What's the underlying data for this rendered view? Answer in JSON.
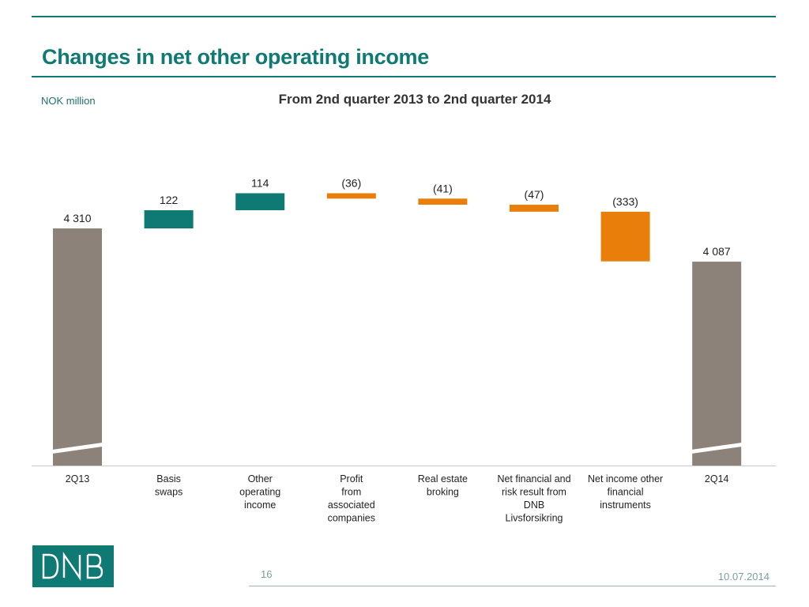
{
  "header": {
    "title": "Changes in net other operating income",
    "unit": "NOK million"
  },
  "chart_data": {
    "type": "bar",
    "subtype": "waterfall",
    "title": "From 2nd quarter 2013 to 2nd quarter 2014",
    "ylabel": "NOK million",
    "axis_break": true,
    "grid": false,
    "legend": "none",
    "categories": [
      [
        "2Q13"
      ],
      [
        "Basis",
        "swaps"
      ],
      [
        "Other",
        "operating",
        "income"
      ],
      [
        "Profit",
        "from",
        "associated",
        "companies"
      ],
      [
        "Real estate",
        "broking"
      ],
      [
        "Net financial and",
        "risk result from",
        "DNB",
        "Livsforsikring"
      ],
      [
        "Net income other",
        "financial",
        "instruments"
      ],
      [
        "2Q14"
      ]
    ],
    "values": [
      4310,
      122,
      114,
      -36,
      -41,
      -47,
      -333,
      4087
    ],
    "kinds": [
      "total",
      "delta",
      "delta",
      "delta",
      "delta",
      "delta",
      "delta",
      "total"
    ],
    "labels": [
      "4 310",
      "122",
      "114",
      "(36)",
      "(41)",
      "(47)",
      "(333)",
      "4 087"
    ],
    "colors": {
      "total": "#8c827a",
      "increase": "#0f7a73",
      "decrease": "#e97e0a"
    }
  },
  "footer": {
    "logo_text": "DNB",
    "page_number": "16",
    "date": "10.07.2014"
  }
}
